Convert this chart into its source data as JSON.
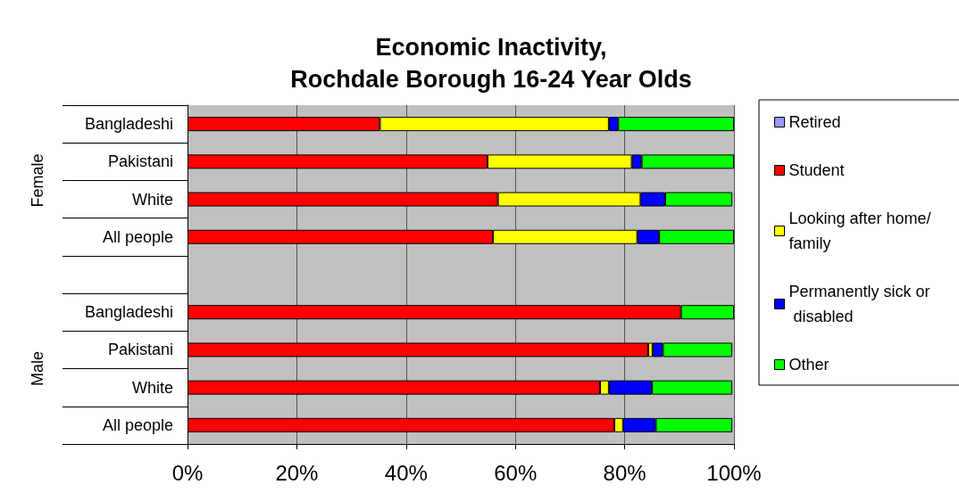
{
  "chart_data": {
    "type": "bar",
    "orientation": "horizontal",
    "stacked": true,
    "title": "Economic Inactivity,\nRochdale Borough 16-24 Year Olds",
    "categories": [
      "Bangladeshi",
      "Pakistani",
      "White",
      "All people",
      null,
      "Bangladeshi",
      "Pakistani",
      "White",
      "All people"
    ],
    "annotations": [
      "Female",
      "Male"
    ],
    "series": [
      {
        "name": "Retired",
        "color": "#9999ff",
        "values": [
          0,
          0,
          null,
          0,
          null,
          0,
          null,
          null,
          null
        ]
      },
      {
        "name": "Student",
        "color": "#ff0000",
        "values": [
          35.2,
          54.9,
          56.8,
          55.9,
          null,
          90.3,
          84.3,
          75.5,
          78.1
        ]
      },
      {
        "name": "Looking after home/family",
        "color": "#ffff00",
        "values": [
          41.9,
          26.4,
          26.1,
          26.4,
          null,
          0,
          0.8,
          1.6,
          1.6
        ]
      },
      {
        "name": "Permanently sick or disabled",
        "color": "#0000ff",
        "values": [
          1.7,
          1.8,
          4.5,
          4.0,
          null,
          0,
          1.9,
          7.9,
          6.0
        ]
      },
      {
        "name": "Other",
        "color": "#00ff00",
        "values": [
          21.2,
          16.9,
          12.3,
          13.7,
          null,
          9.7,
          12.7,
          14.7,
          14.0
        ]
      }
    ],
    "xlim": [
      0,
      100
    ],
    "xticks": [
      {
        "value": 0,
        "label": "0%"
      },
      {
        "value": 20,
        "label": "20%"
      },
      {
        "value": 40,
        "label": "40%"
      },
      {
        "value": 60,
        "label": "60%"
      },
      {
        "value": 80,
        "label": "80%"
      },
      {
        "value": 100,
        "label": "100%"
      }
    ],
    "grid": "x",
    "legend": "right"
  }
}
